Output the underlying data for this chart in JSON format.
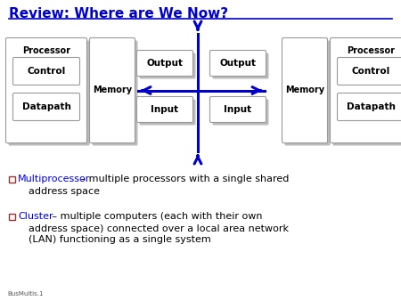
{
  "title": "Review: Where are We Now?",
  "title_color": "#0000CC",
  "title_fontsize": 11,
  "bg_color": "#FFFFFF",
  "bullet1_keyword": "Multiprocessor",
  "bullet1_rest": " – multiple processors with a single shared",
  "bullet1_line2": "address space",
  "bullet2_keyword": "Cluster",
  "bullet2_rest": " – multiple computers (each with their own",
  "bullet2_line2": "address space) connected over a local area network",
  "bullet2_line3": "(LAN) functioning as a single system",
  "keyword_color": "#0000EE",
  "bullet_text_color": "#000000",
  "footer": "BusMultis.1",
  "box_face": "#FFFFFF",
  "box_edge": "#999999",
  "box_shadow": "#BBBBBB",
  "arrow_color": "#0000CC",
  "bullet_color": "#CC0000"
}
